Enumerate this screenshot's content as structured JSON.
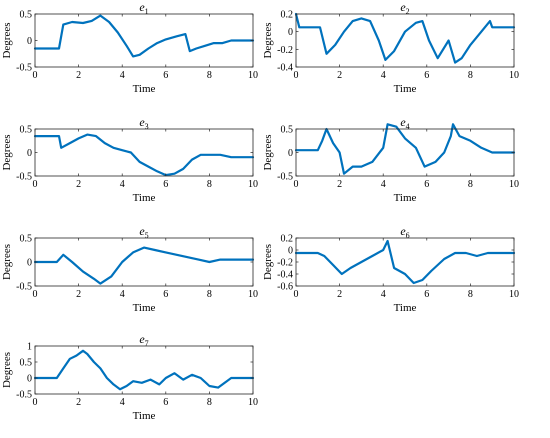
{
  "chart_data": [
    {
      "type": "line",
      "title": "e",
      "title_sub": "1",
      "xlabel": "Time",
      "ylabel": "Degrees",
      "xlim": [
        0,
        10
      ],
      "ylim": [
        -0.5,
        0.5
      ],
      "xticks": [
        0,
        2,
        4,
        6,
        8,
        10
      ],
      "yticks": [
        -0.5,
        0,
        0.5
      ],
      "ytick_labels": [
        "-0.5",
        "0",
        "0.5"
      ],
      "grid": false,
      "series": [
        {
          "color": "#0072BD",
          "x": [
            0,
            1.1,
            1.3,
            1.7,
            2.2,
            2.6,
            3.0,
            3.4,
            3.8,
            4.2,
            4.5,
            4.8,
            5.2,
            5.6,
            6.0,
            6.5,
            6.9,
            7.1,
            7.4,
            7.8,
            8.2,
            8.6,
            9.0,
            10
          ],
          "y": [
            -0.15,
            -0.15,
            0.3,
            0.35,
            0.33,
            0.37,
            0.47,
            0.35,
            0.15,
            -0.1,
            -0.3,
            -0.27,
            -0.15,
            -0.05,
            0.02,
            0.08,
            0.12,
            -0.2,
            -0.15,
            -0.1,
            -0.05,
            -0.05,
            0.0,
            0.0
          ]
        }
      ]
    },
    {
      "type": "line",
      "title": "e",
      "title_sub": "2",
      "xlabel": "Time",
      "ylabel": "Degrees",
      "xlim": [
        0,
        10
      ],
      "ylim": [
        -0.4,
        0.2
      ],
      "xticks": [
        0,
        2,
        4,
        6,
        8,
        10
      ],
      "yticks": [
        -0.4,
        -0.2,
        0,
        0.2
      ],
      "ytick_labels": [
        "-0.4",
        "-0.2",
        "0",
        "0.2"
      ],
      "grid": false,
      "series": [
        {
          "color": "#0072BD",
          "x": [
            0,
            0.15,
            0.25,
            1.1,
            1.4,
            1.8,
            2.2,
            2.6,
            3.0,
            3.4,
            3.8,
            4.1,
            4.5,
            5.0,
            5.5,
            5.8,
            6.1,
            6.5,
            7.0,
            7.3,
            7.6,
            8.0,
            8.5,
            8.9,
            9.0,
            10
          ],
          "y": [
            0.2,
            0.05,
            0.05,
            0.05,
            -0.25,
            -0.15,
            0.0,
            0.12,
            0.15,
            0.12,
            -0.1,
            -0.32,
            -0.22,
            0.0,
            0.1,
            0.12,
            -0.1,
            -0.3,
            -0.1,
            -0.35,
            -0.3,
            -0.15,
            0.0,
            0.12,
            0.05,
            0.05
          ]
        }
      ]
    },
    {
      "type": "line",
      "title": "e",
      "title_sub": "3",
      "xlabel": "Time",
      "ylabel": "Degrees",
      "xlim": [
        0,
        10
      ],
      "ylim": [
        -0.5,
        0.5
      ],
      "xticks": [
        0,
        2,
        4,
        6,
        8,
        10
      ],
      "yticks": [
        -0.5,
        0,
        0.5
      ],
      "ytick_labels": [
        "-0.5",
        "0",
        "0.5"
      ],
      "grid": false,
      "series": [
        {
          "color": "#0072BD",
          "x": [
            0,
            1.1,
            1.2,
            1.6,
            2.0,
            2.4,
            2.8,
            3.2,
            3.6,
            4.0,
            4.4,
            4.8,
            5.2,
            5.6,
            6.0,
            6.4,
            6.8,
            7.2,
            7.6,
            8.0,
            8.5,
            9.0,
            10
          ],
          "y": [
            0.35,
            0.35,
            0.1,
            0.2,
            0.3,
            0.38,
            0.35,
            0.2,
            0.1,
            0.05,
            0.0,
            -0.2,
            -0.3,
            -0.4,
            -0.48,
            -0.45,
            -0.35,
            -0.15,
            -0.05,
            -0.05,
            -0.05,
            -0.1,
            -0.1
          ]
        }
      ]
    },
    {
      "type": "line",
      "title": "e",
      "title_sub": "4",
      "xlabel": "Time",
      "ylabel": "Degrees",
      "xlim": [
        0,
        10
      ],
      "ylim": [
        -0.5,
        0.5
      ],
      "xticks": [
        0,
        2,
        4,
        6,
        8,
        10
      ],
      "yticks": [
        -0.5,
        0,
        0.5
      ],
      "ytick_labels": [
        "-0.5",
        "0",
        "0.5"
      ],
      "grid": false,
      "series": [
        {
          "color": "#0072BD",
          "x": [
            0,
            1.0,
            1.2,
            1.4,
            1.7,
            2.0,
            2.2,
            2.6,
            3.0,
            3.5,
            4.0,
            4.2,
            4.6,
            5.0,
            5.5,
            5.9,
            6.4,
            6.8,
            7.1,
            7.2,
            7.5,
            8.0,
            8.5,
            9.0,
            10
          ],
          "y": [
            0.05,
            0.05,
            0.25,
            0.5,
            0.2,
            0.0,
            -0.45,
            -0.3,
            -0.3,
            -0.2,
            0.1,
            0.6,
            0.55,
            0.3,
            0.1,
            -0.3,
            -0.2,
            0.0,
            0.35,
            0.6,
            0.35,
            0.25,
            0.1,
            0.0,
            0.0
          ]
        }
      ]
    },
    {
      "type": "line",
      "title": "e",
      "title_sub": "5",
      "xlabel": "Time",
      "ylabel": "Degrees",
      "xlim": [
        0,
        10
      ],
      "ylim": [
        -0.5,
        0.5
      ],
      "xticks": [
        0,
        2,
        4,
        6,
        8,
        10
      ],
      "yticks": [
        -0.5,
        0,
        0.5
      ],
      "ytick_labels": [
        "-0.5",
        "0",
        "0.5"
      ],
      "grid": false,
      "series": [
        {
          "color": "#0072BD",
          "x": [
            0,
            1.0,
            1.3,
            1.7,
            2.2,
            2.7,
            3.0,
            3.5,
            4.0,
            4.5,
            5.0,
            5.5,
            6.0,
            6.5,
            7.0,
            7.5,
            8.0,
            8.5,
            9.0,
            9.5,
            10
          ],
          "y": [
            0.0,
            0.0,
            0.15,
            0.0,
            -0.2,
            -0.35,
            -0.45,
            -0.3,
            0.0,
            0.2,
            0.3,
            0.25,
            0.2,
            0.15,
            0.1,
            0.05,
            0.0,
            0.05,
            0.05,
            0.05,
            0.05
          ]
        }
      ]
    },
    {
      "type": "line",
      "title": "e",
      "title_sub": "6",
      "xlabel": "Time",
      "ylabel": "Degrees",
      "xlim": [
        0,
        10
      ],
      "ylim": [
        -0.6,
        0.2
      ],
      "xticks": [
        0,
        2,
        4,
        6,
        8,
        10
      ],
      "yticks": [
        -0.6,
        -0.4,
        -0.2,
        0,
        0.2
      ],
      "ytick_labels": [
        "-0.6",
        "-0.4",
        "-0.2",
        "0",
        "0.2"
      ],
      "grid": false,
      "series": [
        {
          "color": "#0072BD",
          "x": [
            0,
            1.0,
            1.3,
            1.7,
            2.1,
            2.5,
            3.0,
            3.5,
            4.0,
            4.2,
            4.5,
            5.0,
            5.4,
            5.8,
            6.2,
            6.8,
            7.3,
            7.8,
            8.3,
            8.8,
            9.0,
            10
          ],
          "y": [
            -0.05,
            -0.05,
            -0.1,
            -0.25,
            -0.4,
            -0.3,
            -0.2,
            -0.1,
            0.0,
            0.15,
            -0.3,
            -0.4,
            -0.55,
            -0.5,
            -0.35,
            -0.15,
            -0.05,
            -0.05,
            -0.1,
            -0.05,
            -0.05,
            -0.05
          ]
        }
      ]
    },
    {
      "type": "line",
      "title": "e",
      "title_sub": "7",
      "xlabel": "Time",
      "ylabel": "Degrees",
      "xlim": [
        0,
        10
      ],
      "ylim": [
        -0.5,
        1
      ],
      "xticks": [
        0,
        2,
        4,
        6,
        8,
        10
      ],
      "yticks": [
        -0.5,
        0,
        0.5,
        1
      ],
      "ytick_labels": [
        "-0.5",
        "0",
        "0.5",
        "1"
      ],
      "grid": false,
      "series": [
        {
          "color": "#0072BD",
          "x": [
            0,
            1.0,
            1.3,
            1.6,
            1.9,
            2.2,
            2.4,
            2.7,
            3.0,
            3.3,
            3.6,
            3.9,
            4.2,
            4.5,
            4.9,
            5.3,
            5.7,
            6.0,
            6.4,
            6.8,
            7.2,
            7.6,
            8.0,
            8.4,
            8.8,
            9.0,
            10
          ],
          "y": [
            0.0,
            0.0,
            0.3,
            0.6,
            0.7,
            0.85,
            0.75,
            0.5,
            0.3,
            0.0,
            -0.2,
            -0.35,
            -0.25,
            -0.1,
            -0.15,
            -0.05,
            -0.2,
            0.0,
            0.15,
            -0.05,
            0.1,
            0.0,
            -0.25,
            -0.3,
            -0.1,
            0.0,
            0.0
          ]
        }
      ]
    }
  ]
}
